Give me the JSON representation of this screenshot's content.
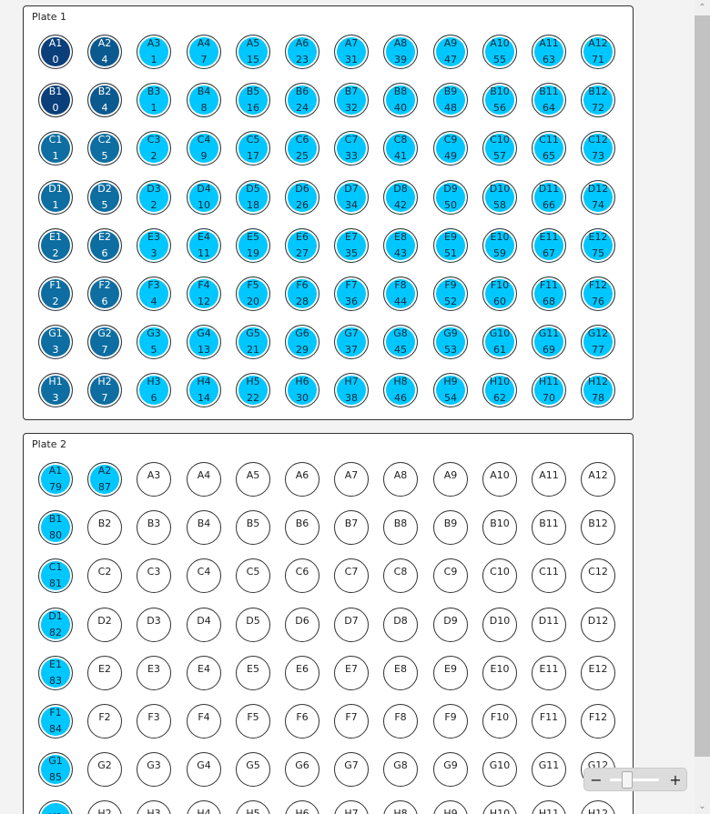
{
  "colors": {
    "darkest": "#0a3f7a",
    "dark": "#0b5a8f",
    "medium": "#0e6ea2",
    "cyan": "#00c7ff",
    "empty": "#ffffff"
  },
  "rows": [
    "A",
    "B",
    "C",
    "D",
    "E",
    "F",
    "G",
    "H"
  ],
  "cols": [
    "1",
    "2",
    "3",
    "4",
    "5",
    "6",
    "7",
    "8",
    "9",
    "10",
    "11",
    "12"
  ],
  "plates": [
    {
      "title": "Plate 1",
      "values": [
        [
          "0",
          "4",
          "1",
          "7",
          "15",
          "23",
          "31",
          "39",
          "47",
          "55",
          "63",
          "71"
        ],
        [
          "0",
          "4",
          "1",
          "8",
          "16",
          "24",
          "32",
          "40",
          "48",
          "56",
          "64",
          "72"
        ],
        [
          "1",
          "5",
          "2",
          "9",
          "17",
          "25",
          "33",
          "41",
          "49",
          "57",
          "65",
          "73"
        ],
        [
          "1",
          "5",
          "2",
          "10",
          "18",
          "26",
          "34",
          "42",
          "50",
          "58",
          "66",
          "74"
        ],
        [
          "2",
          "6",
          "3",
          "11",
          "19",
          "27",
          "35",
          "43",
          "51",
          "59",
          "67",
          "75"
        ],
        [
          "2",
          "6",
          "4",
          "12",
          "20",
          "28",
          "36",
          "44",
          "52",
          "60",
          "68",
          "76"
        ],
        [
          "3",
          "7",
          "5",
          "13",
          "21",
          "29",
          "37",
          "45",
          "53",
          "61",
          "69",
          "77"
        ],
        [
          "3",
          "7",
          "6",
          "14",
          "22",
          "30",
          "38",
          "46",
          "54",
          "62",
          "70",
          "78"
        ]
      ],
      "fills": [
        [
          "darkest",
          "dark",
          "cyan",
          "cyan",
          "cyan",
          "cyan",
          "cyan",
          "cyan",
          "cyan",
          "cyan",
          "cyan",
          "cyan"
        ],
        [
          "darkest",
          "dark",
          "cyan",
          "cyan",
          "cyan",
          "cyan",
          "cyan",
          "cyan",
          "cyan",
          "cyan",
          "cyan",
          "cyan"
        ],
        [
          "medium",
          "medium",
          "cyan",
          "cyan",
          "cyan",
          "cyan",
          "cyan",
          "cyan",
          "cyan",
          "cyan",
          "cyan",
          "cyan"
        ],
        [
          "medium",
          "medium",
          "cyan",
          "cyan",
          "cyan",
          "cyan",
          "cyan",
          "cyan",
          "cyan",
          "cyan",
          "cyan",
          "cyan"
        ],
        [
          "medium",
          "medium",
          "cyan",
          "cyan",
          "cyan",
          "cyan",
          "cyan",
          "cyan",
          "cyan",
          "cyan",
          "cyan",
          "cyan"
        ],
        [
          "medium",
          "medium",
          "cyan",
          "cyan",
          "cyan",
          "cyan",
          "cyan",
          "cyan",
          "cyan",
          "cyan",
          "cyan",
          "cyan"
        ],
        [
          "medium",
          "medium",
          "cyan",
          "cyan",
          "cyan",
          "cyan",
          "cyan",
          "cyan",
          "cyan",
          "cyan",
          "cyan",
          "cyan"
        ],
        [
          "medium",
          "medium",
          "cyan",
          "cyan",
          "cyan",
          "cyan",
          "cyan",
          "cyan",
          "cyan",
          "cyan",
          "cyan",
          "cyan"
        ]
      ]
    },
    {
      "title": "Plate 2",
      "values": [
        [
          "79",
          "87",
          "",
          "",
          "",
          "",
          "",
          "",
          "",
          "",
          "",
          ""
        ],
        [
          "80",
          "",
          "",
          "",
          "",
          "",
          "",
          "",
          "",
          "",
          "",
          ""
        ],
        [
          "81",
          "",
          "",
          "",
          "",
          "",
          "",
          "",
          "",
          "",
          "",
          ""
        ],
        [
          "82",
          "",
          "",
          "",
          "",
          "",
          "",
          "",
          "",
          "",
          "",
          ""
        ],
        [
          "83",
          "",
          "",
          "",
          "",
          "",
          "",
          "",
          "",
          "",
          "",
          ""
        ],
        [
          "84",
          "",
          "",
          "",
          "",
          "",
          "",
          "",
          "",
          "",
          "",
          ""
        ],
        [
          "85",
          "",
          "",
          "",
          "",
          "",
          "",
          "",
          "",
          "",
          "",
          ""
        ],
        [
          "",
          "",
          "",
          "",
          "",
          "",
          "",
          "",
          "",
          "",
          "",
          ""
        ]
      ],
      "fills": [
        [
          "cyan",
          "cyan",
          "empty",
          "empty",
          "empty",
          "empty",
          "empty",
          "empty",
          "empty",
          "empty",
          "empty",
          "empty"
        ],
        [
          "cyan",
          "empty",
          "empty",
          "empty",
          "empty",
          "empty",
          "empty",
          "empty",
          "empty",
          "empty",
          "empty",
          "empty"
        ],
        [
          "cyan",
          "empty",
          "empty",
          "empty",
          "empty",
          "empty",
          "empty",
          "empty",
          "empty",
          "empty",
          "empty",
          "empty"
        ],
        [
          "cyan",
          "empty",
          "empty",
          "empty",
          "empty",
          "empty",
          "empty",
          "empty",
          "empty",
          "empty",
          "empty",
          "empty"
        ],
        [
          "cyan",
          "empty",
          "empty",
          "empty",
          "empty",
          "empty",
          "empty",
          "empty",
          "empty",
          "empty",
          "empty",
          "empty"
        ],
        [
          "cyan",
          "empty",
          "empty",
          "empty",
          "empty",
          "empty",
          "empty",
          "empty",
          "empty",
          "empty",
          "empty",
          "empty"
        ],
        [
          "cyan",
          "empty",
          "empty",
          "empty",
          "empty",
          "empty",
          "empty",
          "empty",
          "empty",
          "empty",
          "empty",
          "empty"
        ],
        [
          "cyan",
          "empty",
          "empty",
          "empty",
          "empty",
          "empty",
          "empty",
          "empty",
          "empty",
          "empty",
          "empty",
          "empty"
        ]
      ]
    }
  ],
  "zoom": {
    "minus": "−",
    "plus": "+",
    "level": 0.35
  },
  "scroll": {
    "up": "^",
    "down": "v"
  }
}
